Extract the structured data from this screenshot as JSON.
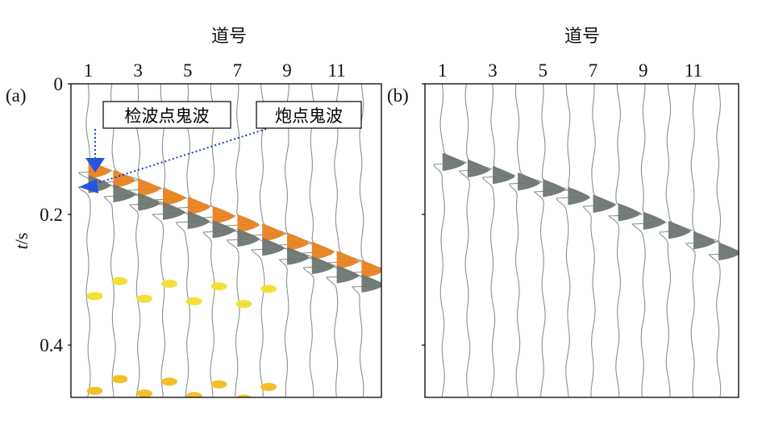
{
  "chart_data": [
    {
      "panel": "(a)",
      "type": "line",
      "xlabel": "道号",
      "ylabel_italic": "t",
      "ylabel_rest": "/s",
      "x_ticks": [
        "1",
        "3",
        "5",
        "7",
        "9",
        "11"
      ],
      "y_ticks": [
        "0",
        "0.2",
        "0.4"
      ],
      "xlim": [
        0.3,
        12.8
      ],
      "ylim": [
        0,
        0.48
      ],
      "traces": [
        1,
        2,
        3,
        4,
        5,
        6,
        7,
        8,
        9,
        10,
        11,
        12
      ],
      "series": [
        {
          "name": "检波点鬼波",
          "color": "#e8821e",
          "x": [
            1,
            2,
            3,
            4,
            5,
            6,
            7,
            8,
            9,
            10,
            11,
            12
          ],
          "t": [
            0.135,
            0.149,
            0.162,
            0.176,
            0.19,
            0.204,
            0.217,
            0.231,
            0.245,
            0.259,
            0.273,
            0.287
          ]
        },
        {
          "name": "炮点鬼波",
          "color": "#6d7671",
          "x": [
            1,
            2,
            3,
            4,
            5,
            6,
            7,
            8,
            9,
            10,
            11,
            12
          ],
          "t": [
            0.157,
            0.171,
            0.184,
            0.198,
            0.212,
            0.226,
            0.239,
            0.253,
            0.267,
            0.281,
            0.295,
            0.309
          ]
        }
      ],
      "annotations": [
        "检波点鬼波",
        "炮点鬼波"
      ],
      "later_events_t": [
        0.3,
        0.325,
        0.45,
        0.47
      ]
    },
    {
      "panel": "(b)",
      "type": "line",
      "xlabel": "道号",
      "x_ticks": [
        "1",
        "3",
        "5",
        "7",
        "9",
        "11"
      ],
      "y_ticks": [
        "",
        "",
        ""
      ],
      "xlim": [
        0.3,
        12.8
      ],
      "ylim": [
        0,
        0.48
      ],
      "traces": [
        1,
        2,
        3,
        4,
        5,
        6,
        7,
        8,
        9,
        10,
        11,
        12
      ],
      "series": [
        {
          "name": "",
          "color": "#6d7671",
          "x": [
            1,
            2,
            3,
            4,
            5,
            6,
            7,
            8,
            9,
            10,
            11,
            12
          ],
          "t": [
            0.123,
            0.133,
            0.143,
            0.153,
            0.163,
            0.175,
            0.187,
            0.2,
            0.213,
            0.227,
            0.243,
            0.26
          ]
        }
      ]
    }
  ]
}
